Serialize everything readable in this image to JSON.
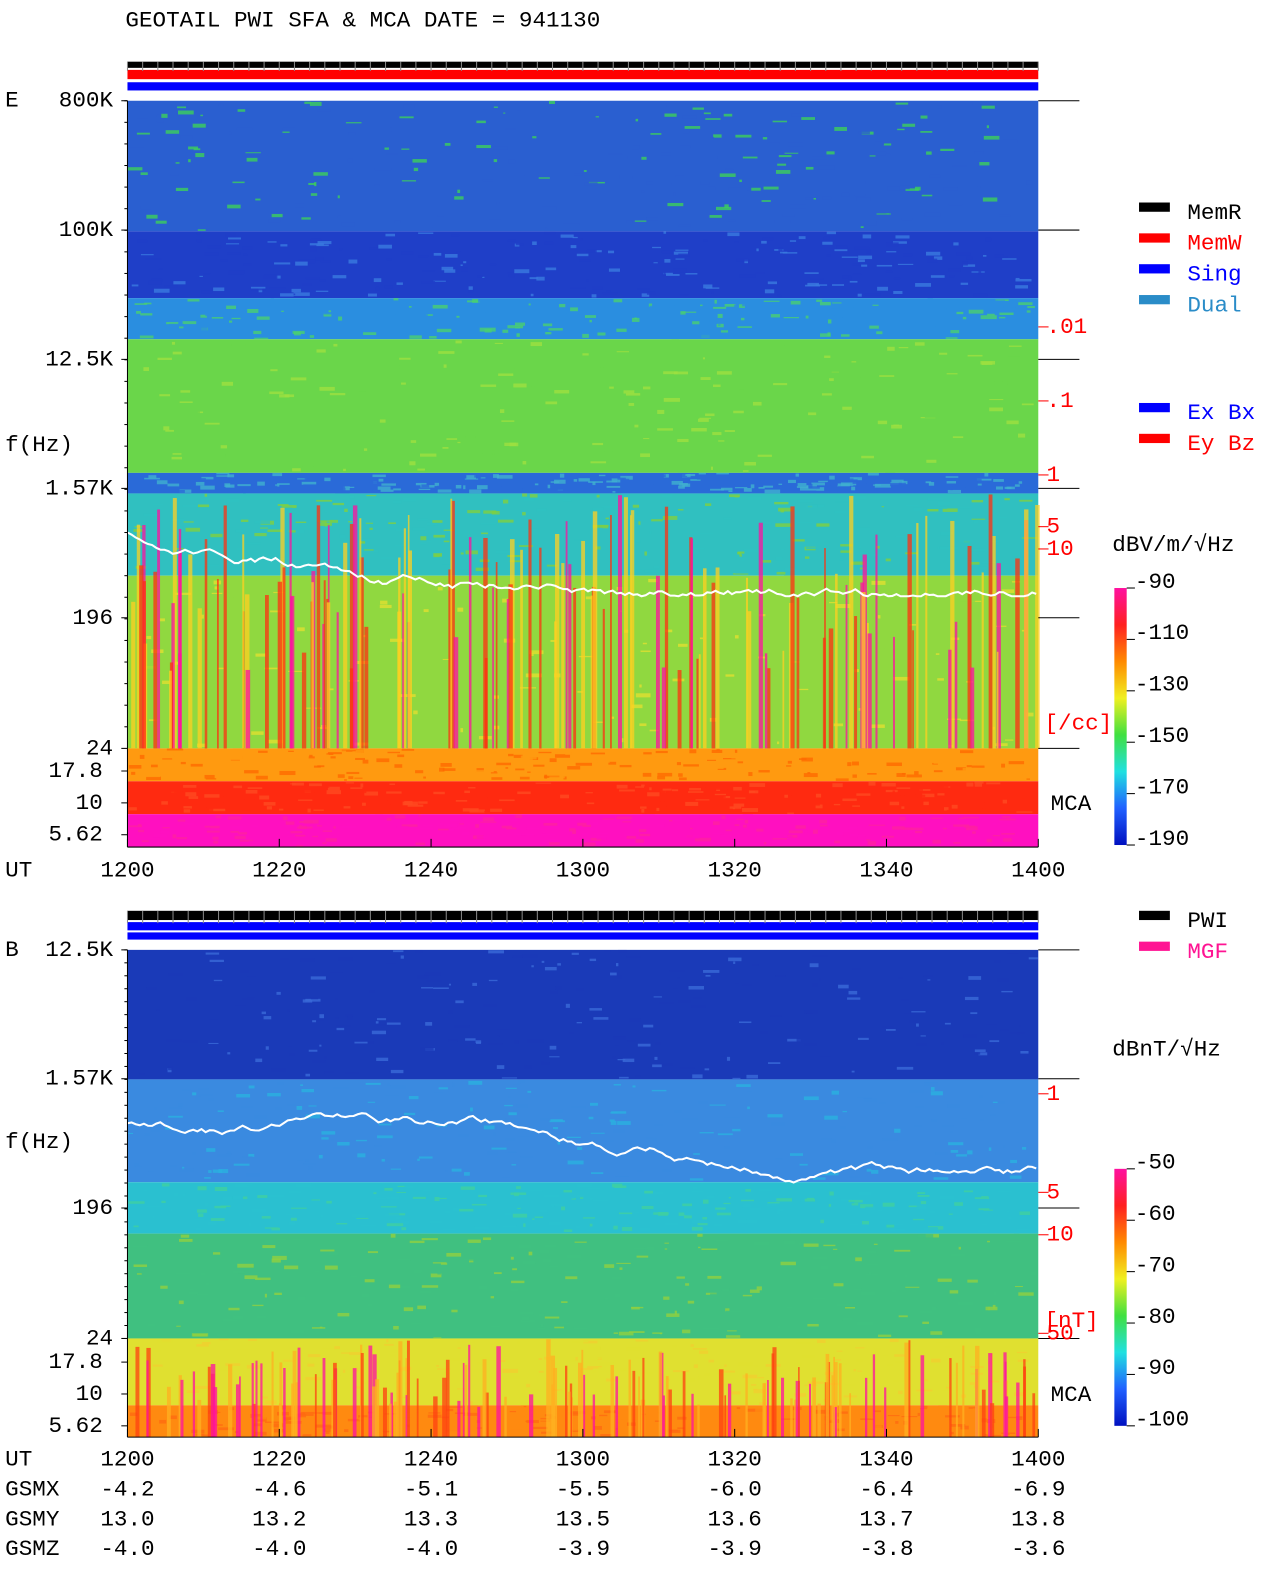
{
  "header": {
    "title": "GEOTAIL  PWI SFA & MCA   DATE = 941130"
  },
  "time_labels": [
    "1200",
    "1220",
    "1240",
    "1300",
    "1320",
    "1340",
    "1400"
  ],
  "x_label": "UT",
  "panels": [
    {
      "label": "E",
      "y_label": "f(Hz)",
      "ylim": [
        24,
        800000
      ],
      "yticks": [
        {
          "value": 800000,
          "label": "800K"
        },
        {
          "value": 100000,
          "label": "100K"
        },
        {
          "value": 12500,
          "label": "12.5K"
        },
        {
          "value": 1570,
          "label": "1.57K"
        },
        196,
        24
      ],
      "mca_label": "MCA",
      "mca_lim": [
        5.62,
        17.8
      ],
      "mca_ticks": [
        17.8,
        10,
        5.62
      ],
      "density_lim": [
        0.01,
        10
      ],
      "density_ticks": [
        10,
        5,
        1,
        {
          "value": 0.1,
          "label": ".1"
        },
        {
          "value": 0.01,
          "label": ".01"
        }
      ],
      "density_unit": "[/cc]",
      "colorbar_unit": "dBV/m/√Hz",
      "colorbar_lim": [
        -190,
        -90
      ],
      "colorbar_ticks": [
        -90,
        -110,
        -130,
        -150,
        -170,
        -190
      ],
      "legend_groups": [
        [
          {
            "name": "MemR",
            "color": "#000000"
          },
          {
            "name": "MemW",
            "color": "#ff0000"
          },
          {
            "name": "Sing",
            "color": "#0000ff"
          },
          {
            "name": "Dual",
            "color": "#2a8cc8"
          }
        ],
        [
          {
            "name": "Ex Bx",
            "color": "#0000ff"
          },
          {
            "name": "Ey Bz",
            "color": "#ff0000"
          }
        ]
      ]
    },
    {
      "label": "B",
      "y_label": "f(Hz)",
      "ylim": [
        24,
        12500
      ],
      "yticks": [
        {
          "value": 12500,
          "label": "12.5K"
        },
        {
          "value": 1570,
          "label": "1.57K"
        },
        196,
        24
      ],
      "mca_label": "MCA",
      "mca_lim": [
        5.62,
        17.8
      ],
      "mca_ticks": [
        17.8,
        10,
        5.62
      ],
      "density_lim": [
        1,
        50
      ],
      "density_ticks": [
        50,
        10,
        5,
        1
      ],
      "density_unit": "[nT]",
      "colorbar_unit": "dBnT/√Hz",
      "colorbar_lim": [
        -100,
        -50
      ],
      "colorbar_ticks": [
        -50,
        -60,
        -70,
        -80,
        -90,
        -100
      ],
      "legend_groups": [
        [
          {
            "name": "PWI",
            "color": "#000000"
          },
          {
            "name": "MGF",
            "color": "#ff1493"
          }
        ]
      ]
    }
  ],
  "orbit": {
    "rows": [
      {
        "name": "GSMX",
        "values": [
          "-4.2",
          "-4.6",
          "-5.1",
          "-5.5",
          "-6.0",
          "-6.4",
          "-6.9"
        ]
      },
      {
        "name": "GSMY",
        "values": [
          "13.0",
          "13.2",
          "13.3",
          "13.5",
          "13.6",
          "13.7",
          "13.8"
        ]
      },
      {
        "name": "GSMZ",
        "values": [
          "-4.0",
          "-4.0",
          "-4.0",
          "-3.9",
          "-3.9",
          "-3.8",
          "-3.6"
        ]
      }
    ]
  }
}
